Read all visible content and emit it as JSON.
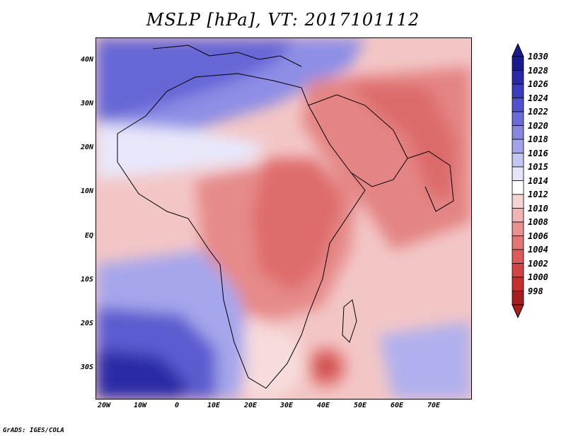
{
  "title": "MSLP [hPa], VT: 2017101112",
  "y_labels": [
    "40N",
    "30N",
    "20N",
    "10N",
    "EQ",
    "10S",
    "20S",
    "30S"
  ],
  "x_labels": [
    "20W",
    "10W",
    "0",
    "10E",
    "20E",
    "30E",
    "40E",
    "50E",
    "60E",
    "70E"
  ],
  "colorbar": {
    "levels": [
      "1030",
      "1028",
      "1026",
      "1024",
      "1022",
      "1020",
      "1018",
      "1016",
      "1015",
      "1014",
      "1012",
      "1010",
      "1008",
      "1006",
      "1004",
      "1002",
      "1000",
      "998"
    ],
    "colors": [
      "#1a1a8c",
      "#2a2aa6",
      "#3b3bbd",
      "#5252cc",
      "#6c6cd9",
      "#8787e2",
      "#a3a3ea",
      "#c5c5f2",
      "#e4e4fa",
      "#ffffff",
      "#f6d4d4",
      "#f0b4b4",
      "#e99090",
      "#e27575",
      "#dc5a5a",
      "#d24444",
      "#c23030",
      "#a81e1e"
    ],
    "top_arrow": "#1a1a8c",
    "bottom_arrow": "#a81e1e"
  },
  "credit": "GrADS: IGES/COLA"
}
